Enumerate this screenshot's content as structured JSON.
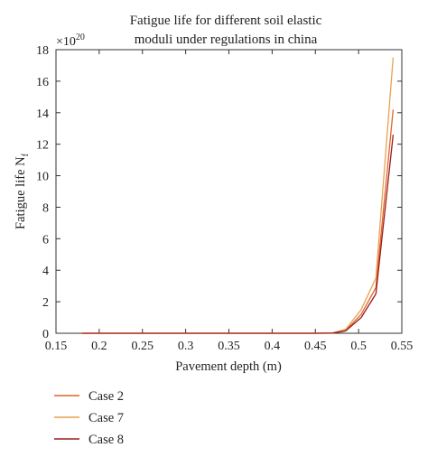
{
  "chart_data": {
    "type": "line",
    "title_lines": [
      "Fatigue life for different soil elastic",
      "moduli under regulations in china"
    ],
    "xlabel": "Pavement depth (m)",
    "ylabel_main": "Fatigue life N",
    "ylabel_sub": "f",
    "y_multiplier_base": "×10",
    "y_multiplier_exp": "20",
    "xlim": [
      0.15,
      0.55
    ],
    "ylim": [
      0,
      18
    ],
    "xticks": [
      0.15,
      0.2,
      0.25,
      0.3,
      0.35,
      0.4,
      0.45,
      0.5,
      0.55
    ],
    "xtick_labels": [
      "0.15",
      "0.2",
      "0.25",
      "0.3",
      "0.35",
      "0.4",
      "0.45",
      "0.5",
      "0.55"
    ],
    "yticks": [
      0,
      2,
      4,
      6,
      8,
      10,
      12,
      14,
      16,
      18
    ],
    "ytick_labels": [
      "0",
      "2",
      "4",
      "6",
      "8",
      "10",
      "12",
      "14",
      "16",
      "18"
    ],
    "grid": false,
    "legend_position": "below",
    "series": [
      {
        "name": "Case 2",
        "color": "#e0632a",
        "x": [
          0.18,
          0.4,
          0.45,
          0.47,
          0.485,
          0.503,
          0.52,
          0.54
        ],
        "y": [
          0,
          0,
          0,
          0.02,
          0.18,
          1.2,
          2.9,
          14.2
        ]
      },
      {
        "name": "Case 7",
        "color": "#eaa050",
        "x": [
          0.18,
          0.4,
          0.45,
          0.47,
          0.485,
          0.503,
          0.52,
          0.54
        ],
        "y": [
          0,
          0,
          0,
          0.03,
          0.25,
          1.5,
          3.5,
          17.5
        ]
      },
      {
        "name": "Case 8",
        "color": "#9b1b1b",
        "x": [
          0.18,
          0.4,
          0.45,
          0.47,
          0.485,
          0.503,
          0.52,
          0.54
        ],
        "y": [
          0,
          0,
          0,
          0.01,
          0.15,
          1.0,
          2.5,
          12.6
        ]
      }
    ]
  }
}
